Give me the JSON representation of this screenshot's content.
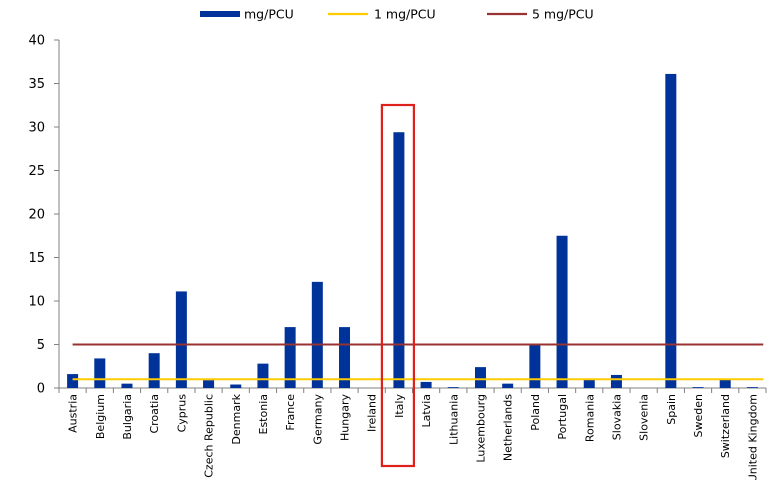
{
  "chart_data": {
    "type": "bar",
    "title": "",
    "xlabel": "",
    "ylabel": "",
    "ylim": [
      0,
      40
    ],
    "yticks": [
      0,
      5,
      10,
      15,
      20,
      25,
      30,
      35,
      40
    ],
    "grid": false,
    "legend_position": "top",
    "categories": [
      "Austria",
      "Belgium",
      "Bulgaria",
      "Croatia",
      "Cyprus",
      "Czech Republic",
      "Denmark",
      "Estonia",
      "France",
      "Germany",
      "Hungary",
      "Ireland",
      "Italy",
      "Latvia",
      "Lithuania",
      "Luxembourg",
      "Netherlands",
      "Poland",
      "Portugal",
      "Romania",
      "Slovakia",
      "Slovenia",
      "Spain",
      "Sweden",
      "Switzerland",
      "United Kingdom"
    ],
    "series": [
      {
        "name": "mg/PCU",
        "type": "bar",
        "color": "#003399",
        "values": [
          1.6,
          3.4,
          0.5,
          4.0,
          11.1,
          0.9,
          0.4,
          2.8,
          7.0,
          12.2,
          7.0,
          0.0,
          29.4,
          0.7,
          0.1,
          2.4,
          0.5,
          5.0,
          17.5,
          1.0,
          1.5,
          0.0,
          36.1,
          0.1,
          1.0,
          0.1
        ]
      },
      {
        "name": "1 mg/PCU",
        "type": "line",
        "color": "#ffcc00",
        "value": 1
      },
      {
        "name": "5 mg/PCU",
        "type": "line",
        "color": "#993333",
        "value": 5
      }
    ],
    "highlight": {
      "category": "Italy",
      "color": "#e0201b"
    }
  }
}
